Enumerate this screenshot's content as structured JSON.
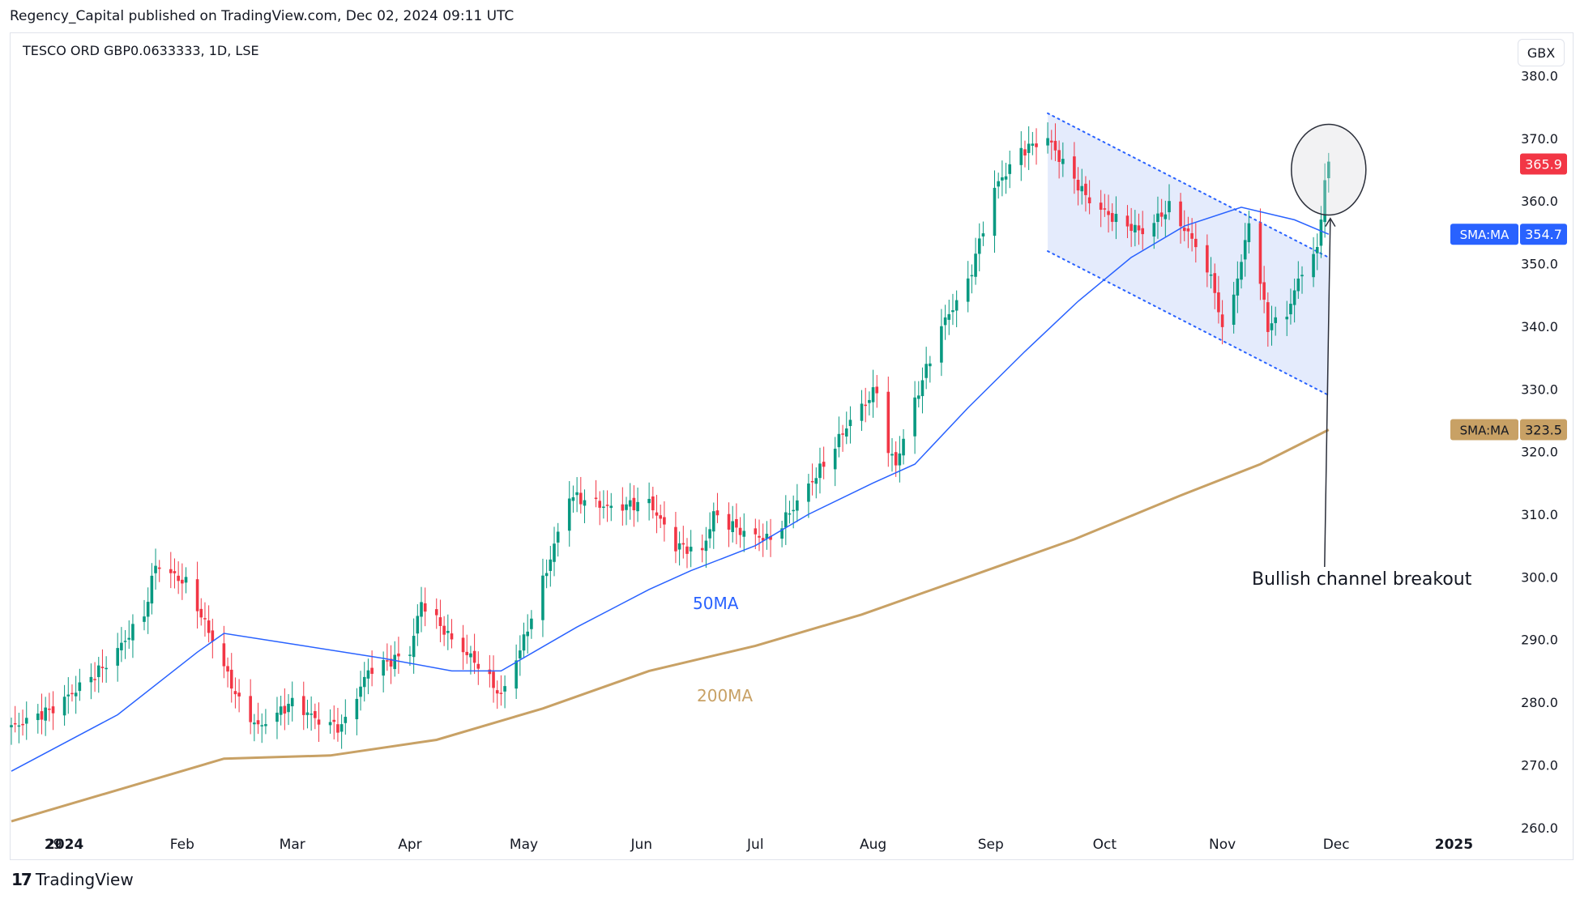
{
  "header": {
    "published_by": "Regency_Capital published on TradingView.com, Dec 02, 2024 09:11 UTC",
    "symbol": "TESCO ORD GBP0.0633333, 1D, LSE",
    "currency": "GBX"
  },
  "footer": {
    "brand": "TradingView",
    "brand_mark": "17"
  },
  "colors": {
    "up": "#089981",
    "down": "#f23645",
    "sma50": "#2962ff",
    "sma200": "#c8a165",
    "channel_fill": "#dbe4fb",
    "channel_line": "#2962ff",
    "price_tag": "#f23645"
  },
  "chart_data": {
    "type": "candlestick",
    "title": "TESCO ORD GBP0.0633333, 1D, LSE",
    "y_axis": {
      "unit": "GBX",
      "ylim": [
        257,
        382
      ],
      "ticks": [
        260.0,
        270.0,
        280.0,
        290.0,
        300.0,
        310.0,
        320.0,
        330.0,
        340.0,
        350.0,
        360.0,
        370.0,
        380.0
      ]
    },
    "x_axis": {
      "ticks": [
        "29",
        "2024",
        "Feb",
        "Mar",
        "Apr",
        "May",
        "Jun",
        "Jul",
        "Aug",
        "Sep",
        "Oct",
        "Nov",
        "Dec",
        "2025"
      ]
    },
    "price_path": [
      [
        "2023-12-18",
        276.0
      ],
      [
        "2023-12-29",
        279.0
      ],
      [
        "2024-01-02",
        281.0
      ],
      [
        "2024-01-12",
        286.0
      ],
      [
        "2024-01-22",
        294.0
      ],
      [
        "2024-01-25",
        302.0
      ],
      [
        "2024-02-02",
        299.0
      ],
      [
        "2024-02-09",
        290.0
      ],
      [
        "2024-02-16",
        280.0
      ],
      [
        "2024-02-21",
        276.0
      ],
      [
        "2024-03-01",
        280.0
      ],
      [
        "2024-03-08",
        277.0
      ],
      [
        "2024-03-14",
        276.0
      ],
      [
        "2024-03-21",
        285.0
      ],
      [
        "2024-04-01",
        288.0
      ],
      [
        "2024-04-04",
        296.0
      ],
      [
        "2024-04-12",
        290.0
      ],
      [
        "2024-04-19",
        286.0
      ],
      [
        "2024-04-25",
        281.0
      ],
      [
        "2024-05-01",
        290.0
      ],
      [
        "2024-05-08",
        303.0
      ],
      [
        "2024-05-13",
        313.0
      ],
      [
        "2024-05-24",
        311.0
      ],
      [
        "2024-06-03",
        312.0
      ],
      [
        "2024-06-10",
        305.0
      ],
      [
        "2024-06-17",
        304.0
      ],
      [
        "2024-06-20",
        310.0
      ],
      [
        "2024-06-28",
        307.0
      ],
      [
        "2024-07-05",
        306.0
      ],
      [
        "2024-07-12",
        312.0
      ],
      [
        "2024-07-19",
        318.0
      ],
      [
        "2024-07-26",
        325.0
      ],
      [
        "2024-08-02",
        330.0
      ],
      [
        "2024-08-05",
        320.0
      ],
      [
        "2024-08-07",
        318.0
      ],
      [
        "2024-08-12",
        328.0
      ],
      [
        "2024-08-19",
        340.0
      ],
      [
        "2024-08-26",
        347.0
      ],
      [
        "2024-09-02",
        362.0
      ],
      [
        "2024-09-09",
        368.0
      ],
      [
        "2024-09-16",
        370.0
      ],
      [
        "2024-09-20",
        366.0
      ],
      [
        "2024-09-27",
        360.0
      ],
      [
        "2024-10-04",
        357.0
      ],
      [
        "2024-10-11",
        355.0
      ],
      [
        "2024-10-18",
        359.0
      ],
      [
        "2024-10-25",
        353.0
      ],
      [
        "2024-10-30",
        346.0
      ],
      [
        "2024-11-01",
        339.0
      ],
      [
        "2024-11-06",
        350.0
      ],
      [
        "2024-11-08",
        357.0
      ],
      [
        "2024-11-13",
        340.0
      ],
      [
        "2024-11-18",
        342.0
      ],
      [
        "2024-11-22",
        349.0
      ],
      [
        "2024-11-26",
        352.0
      ],
      [
        "2024-11-27",
        358.0
      ],
      [
        "2024-11-28",
        363.0
      ],
      [
        "2024-11-29",
        365.9
      ]
    ],
    "sma50": [
      [
        "2023-12-18",
        269.0
      ],
      [
        "2024-01-15",
        278.0
      ],
      [
        "2024-02-05",
        288.0
      ],
      [
        "2024-02-12",
        291.0
      ],
      [
        "2024-03-04",
        289.0
      ],
      [
        "2024-03-25",
        287.0
      ],
      [
        "2024-04-12",
        285.0
      ],
      [
        "2024-04-25",
        285.0
      ],
      [
        "2024-05-15",
        292.0
      ],
      [
        "2024-06-03",
        298.0
      ],
      [
        "2024-06-14",
        301.0
      ],
      [
        "2024-07-01",
        305.0
      ],
      [
        "2024-07-15",
        310.0
      ],
      [
        "2024-08-01",
        315.0
      ],
      [
        "2024-08-12",
        318.0
      ],
      [
        "2024-08-26",
        327.0
      ],
      [
        "2024-09-10",
        336.0
      ],
      [
        "2024-09-24",
        344.0
      ],
      [
        "2024-10-08",
        351.0
      ],
      [
        "2024-10-22",
        356.0
      ],
      [
        "2024-11-06",
        359.0
      ],
      [
        "2024-11-20",
        357.0
      ],
      [
        "2024-11-29",
        354.7
      ]
    ],
    "sma200": [
      [
        "2023-12-18",
        261.0
      ],
      [
        "2024-01-15",
        266.0
      ],
      [
        "2024-02-12",
        271.0
      ],
      [
        "2024-03-11",
        271.5
      ],
      [
        "2024-04-08",
        274.0
      ],
      [
        "2024-05-06",
        279.0
      ],
      [
        "2024-06-03",
        285.0
      ],
      [
        "2024-07-01",
        289.0
      ],
      [
        "2024-07-29",
        294.0
      ],
      [
        "2024-08-26",
        300.0
      ],
      [
        "2024-09-23",
        306.0
      ],
      [
        "2024-10-21",
        313.0
      ],
      [
        "2024-11-11",
        318.0
      ],
      [
        "2024-11-29",
        323.5
      ]
    ],
    "series": [
      {
        "name": "50MA",
        "tag": "SMA:MA",
        "last": 354.7
      },
      {
        "name": "200MA",
        "tag": "SMA:MA",
        "last": 323.5
      }
    ],
    "last_price": 365.9,
    "channel": {
      "upper": [
        [
          "2024-09-16",
          374.0
        ],
        [
          "2024-11-29",
          351.0
        ]
      ],
      "lower": [
        [
          "2024-09-16",
          352.0
        ],
        [
          "2024-11-29",
          329.0
        ]
      ]
    },
    "annotations": {
      "breakout_text": "Bullish channel breakout",
      "circle_center": [
        "2024-11-29",
        365.0
      ],
      "arrow_from": [
        "2024-11-29",
        323.0
      ],
      "arrow_to": [
        "2024-12-02",
        358.0
      ]
    }
  }
}
